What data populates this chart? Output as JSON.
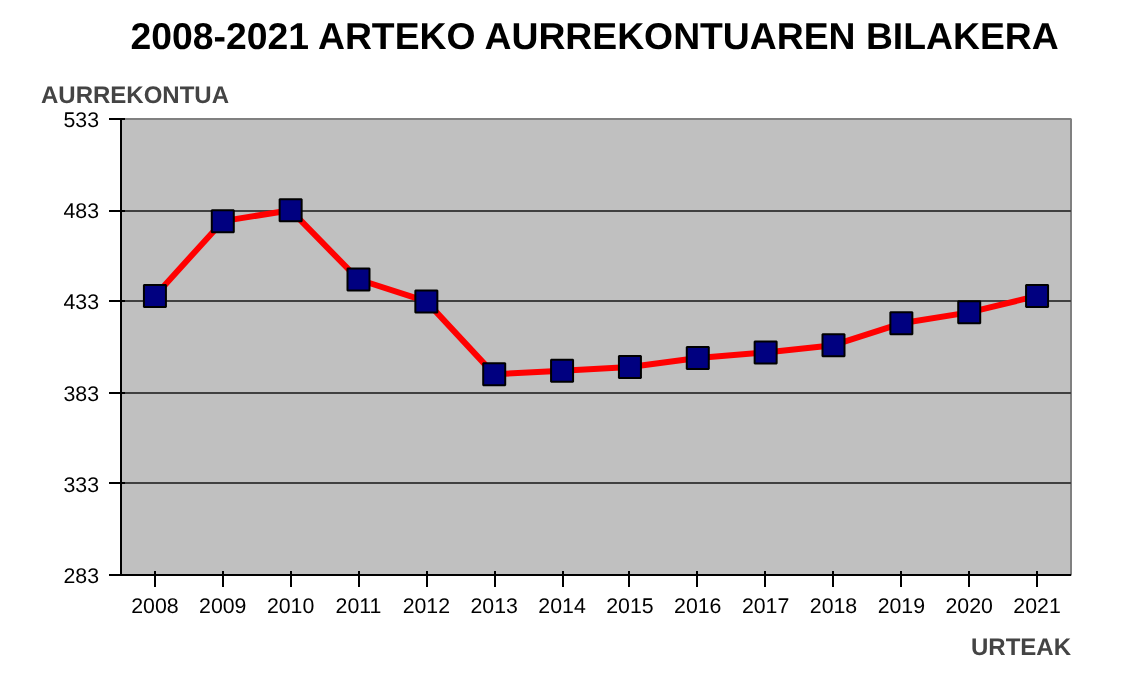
{
  "chart_data": {
    "type": "line",
    "title": "2008-2021 ARTEKO AURREKONTUAREN BILAKERA",
    "xlabel": "URTEAK",
    "ylabel": "AURREKONTUA",
    "categories": [
      "2008",
      "2009",
      "2010",
      "2011",
      "2012",
      "2013",
      "2014",
      "2015",
      "2016",
      "2017",
      "2018",
      "2019",
      "2020",
      "2021"
    ],
    "series": [
      {
        "color": "#ff0000",
        "values": [
          436,
          477,
          483,
          445,
          433,
          393,
          395,
          397,
          402,
          405,
          409,
          421,
          427,
          436
        ]
      }
    ],
    "ylim": [
      283,
      533
    ],
    "yticks": [
      283,
      333,
      383,
      433,
      483,
      533
    ],
    "grid": "y",
    "marker": "square"
  }
}
